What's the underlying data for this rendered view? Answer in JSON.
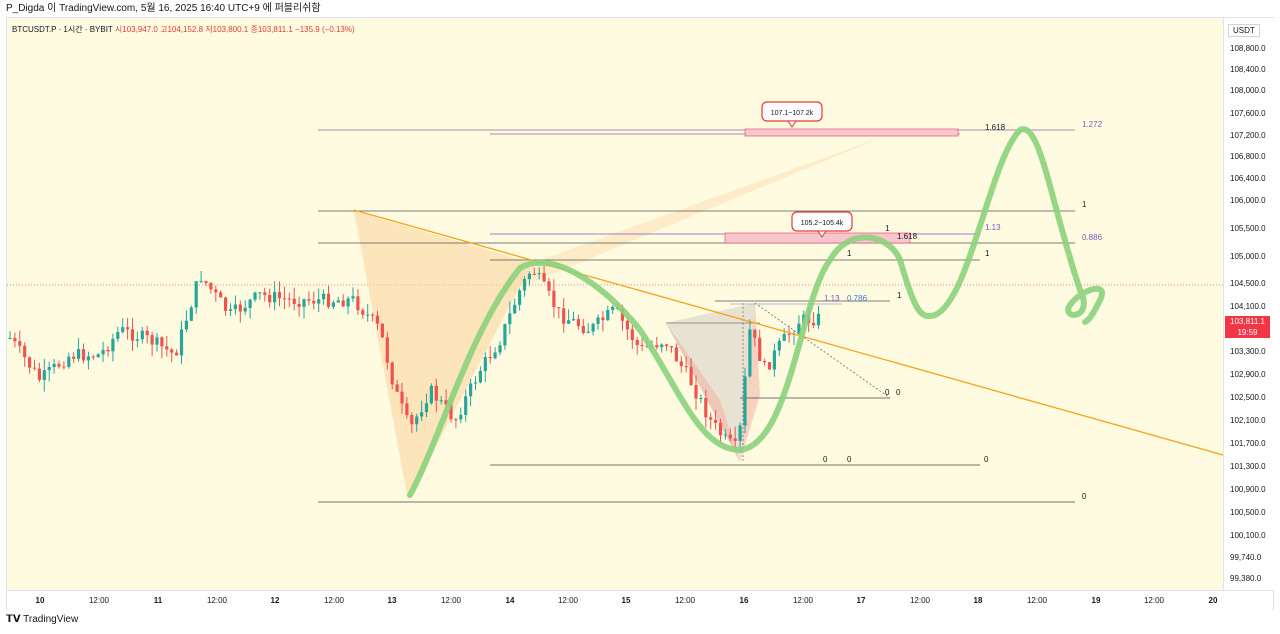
{
  "header": {
    "text": "P_Digda 이 TradingView.com, 5월 16, 2025 16:40 UTC+9 에 퍼블리쉬함"
  },
  "legend": {
    "symbol": "BTCUSDT.P · 1시간 · BYBIT",
    "open": "시103,947.0",
    "high": "고104,152.8",
    "low": "저103,800.1",
    "close": "종103,811.1",
    "change": "−135.9 (−0.13%)"
  },
  "currency": "USDT",
  "price_tag": {
    "price": "103,811.1",
    "timer": "19:59"
  },
  "footer": {
    "brand": "TradingView"
  },
  "colors": {
    "background": "#fffbe0",
    "up": "#26a69a",
    "down": "#ef5350",
    "trendline": "#f7a21b",
    "projection": "#8bd17c",
    "harmonic_fill": "#fbd9a8",
    "fib_text": "#7e57c2",
    "label_border": "#e53935"
  },
  "chart_data": {
    "type": "candlestick",
    "title": "BTCUSDT.P · 1시간 · BYBIT",
    "ylim": [
      99100,
      109100
    ],
    "y_ticks": [
      "108,800.0",
      "108,400.0",
      "108,000.0",
      "107,600.0",
      "107,200.0",
      "106,800.0",
      "106,400.0",
      "106,000.0",
      "105,500.0",
      "105,000.0",
      "104,500.0",
      "104,100.0",
      "103,300.0",
      "102,900.0",
      "102,500.0",
      "102,100.0",
      "101,700.0",
      "101,300.0",
      "100,900.0",
      "100,500.0",
      "100,100.0",
      "99,740.0",
      "99,380.0"
    ],
    "x_ticks": [
      "10",
      "12:00",
      "11",
      "12:00",
      "12",
      "12:00",
      "13",
      "12:00",
      "14",
      "12:00",
      "15",
      "12:00",
      "16",
      "12:00",
      "17",
      "12:00",
      "18",
      "12:00",
      "19",
      "12:00",
      "20"
    ],
    "last_price": 103811.1,
    "price_labels": [
      {
        "text": "107.1~107.2k",
        "price": 107300
      },
      {
        "text": "105.2~105.4k",
        "price": 105500
      }
    ],
    "fib_levels": [
      {
        "label": "1.272",
        "price": 107230
      },
      {
        "label": "1.618",
        "price": 107230
      },
      {
        "label": "1",
        "price": 105930
      },
      {
        "label": "0.886",
        "price": 105350
      },
      {
        "label": "1.13",
        "price": 105580
      },
      {
        "label": "1",
        "price": 105580
      },
      {
        "label": "1.618",
        "price": 105420
      },
      {
        "label": "1",
        "price": 105050
      },
      {
        "label": "1",
        "price": 105070
      },
      {
        "label": "1.13",
        "price": 104230
      },
      {
        "label": "0.786",
        "price": 104230
      },
      {
        "label": "1",
        "price": 104300
      },
      {
        "label": "0",
        "price": 102580
      },
      {
        "label": "0",
        "price": 102580
      },
      {
        "label": "0",
        "price": 101450
      },
      {
        "label": "0",
        "price": 101450
      },
      {
        "label": "0",
        "price": 101450
      },
      {
        "label": "0",
        "price": 100780
      }
    ],
    "scenario_path_prices": [
      100850,
      103300,
      104950,
      104200,
      101600,
      102300,
      104400,
      105350,
      104900,
      103900,
      104700,
      107230,
      104500,
      103800,
      104150
    ]
  }
}
